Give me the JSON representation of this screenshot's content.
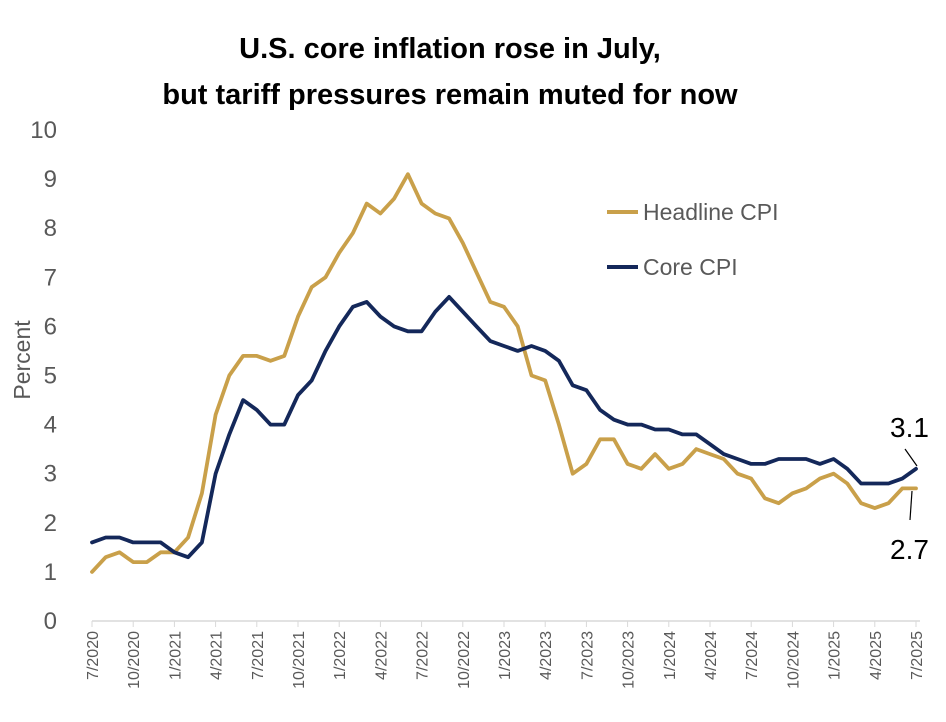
{
  "chart_data": {
    "type": "line",
    "title": [
      "U.S. core inflation rose in July,",
      "but tariff pressures remain muted for now"
    ],
    "ylabel": "Percent",
    "ylim": [
      0,
      10
    ],
    "yticks": [
      0,
      1,
      2,
      3,
      4,
      5,
      6,
      7,
      8,
      9,
      10
    ],
    "grid": false,
    "legend_position": "top-right",
    "x_start": "7/2020",
    "x_labels": [
      "7/2020",
      "10/2020",
      "1/2021",
      "4/2021",
      "7/2021",
      "10/2021",
      "1/2022",
      "4/2022",
      "7/2022",
      "10/2022",
      "1/2023",
      "4/2023",
      "7/2023",
      "10/2023",
      "1/2024",
      "4/2024",
      "7/2024",
      "10/2024",
      "1/2025",
      "4/2025",
      "7/2025"
    ],
    "series": [
      {
        "name": "Headline CPI",
        "color": "#C9A04A",
        "values": [
          1.0,
          1.3,
          1.4,
          1.2,
          1.2,
          1.4,
          1.4,
          1.7,
          2.6,
          4.2,
          5.0,
          5.4,
          5.4,
          5.3,
          5.4,
          6.2,
          6.8,
          7.0,
          7.5,
          7.9,
          8.5,
          8.3,
          8.6,
          9.1,
          8.5,
          8.3,
          8.2,
          7.7,
          7.1,
          6.5,
          6.4,
          6.0,
          5.0,
          4.9,
          4.0,
          3.0,
          3.2,
          3.7,
          3.7,
          3.2,
          3.1,
          3.4,
          3.1,
          3.2,
          3.5,
          3.4,
          3.3,
          3.0,
          2.9,
          2.5,
          2.4,
          2.6,
          2.7,
          2.9,
          3.0,
          2.8,
          2.4,
          2.3,
          2.4,
          2.7,
          2.7
        ]
      },
      {
        "name": "Core CPI",
        "color": "#14285A",
        "values": [
          1.6,
          1.7,
          1.7,
          1.6,
          1.6,
          1.6,
          1.4,
          1.3,
          1.6,
          3.0,
          3.8,
          4.5,
          4.3,
          4.0,
          4.0,
          4.6,
          4.9,
          5.5,
          6.0,
          6.4,
          6.5,
          6.2,
          6.0,
          5.9,
          5.9,
          6.3,
          6.6,
          6.3,
          6.0,
          5.7,
          5.6,
          5.5,
          5.6,
          5.5,
          5.3,
          4.8,
          4.7,
          4.3,
          4.1,
          4.0,
          4.0,
          3.9,
          3.9,
          3.8,
          3.8,
          3.6,
          3.4,
          3.3,
          3.2,
          3.2,
          3.3,
          3.3,
          3.3,
          3.2,
          3.3,
          3.1,
          2.8,
          2.8,
          2.8,
          2.9,
          3.1
        ]
      }
    ],
    "annotations": [
      {
        "series": "Core CPI",
        "text": "3.1"
      },
      {
        "series": "Headline CPI",
        "text": "2.7"
      }
    ]
  }
}
